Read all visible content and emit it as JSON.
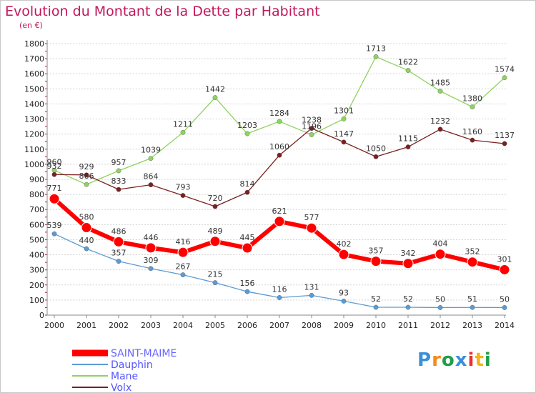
{
  "title": "Evolution du Montant de la Dette par Habitant",
  "unit_label": "(en €)",
  "logo": {
    "text": "Proxiti",
    "colors": [
      "#3a8fd9",
      "#f28c1a",
      "#1f9e48",
      "#3a8fd9",
      "#e8312f",
      "#f2b61a",
      "#1f9e48"
    ]
  },
  "chart_data": {
    "type": "line",
    "x": [
      "2000",
      "2001",
      "2002",
      "2003",
      "2004",
      "2005",
      "2006",
      "2007",
      "2008",
      "2009",
      "2010",
      "2011",
      "2012",
      "2013",
      "2014"
    ],
    "ylim": [
      0,
      1800
    ],
    "yticks": [
      0,
      100,
      200,
      300,
      400,
      500,
      600,
      700,
      800,
      900,
      1000,
      1100,
      1200,
      1300,
      1400,
      1500,
      1600,
      1700,
      1800
    ],
    "grid": true,
    "legend_position": "bottom-left",
    "series": [
      {
        "name": "SAINT-MAIME",
        "color": "#ff0000",
        "values": [
          771,
          580,
          486,
          446,
          416,
          489,
          445,
          621,
          577,
          402,
          357,
          342,
          404,
          352,
          301
        ]
      },
      {
        "name": "Dauphin",
        "color": "#5b9bd5",
        "values": [
          539,
          440,
          357,
          309,
          267,
          215,
          156,
          116,
          131,
          93,
          52,
          52,
          50,
          51,
          50
        ]
      },
      {
        "name": "Mane",
        "color": "#8fd35f",
        "values": [
          960,
          866,
          957,
          1039,
          1211,
          1442,
          1203,
          1284,
          1196,
          1301,
          1713,
          1622,
          1485,
          1380,
          1574
        ]
      },
      {
        "name": "Volx",
        "color": "#7b1f1f",
        "values": [
          932,
          929,
          833,
          864,
          793,
          720,
          814,
          1060,
          1238,
          1147,
          1050,
          1115,
          1232,
          1160,
          1137
        ]
      }
    ]
  }
}
